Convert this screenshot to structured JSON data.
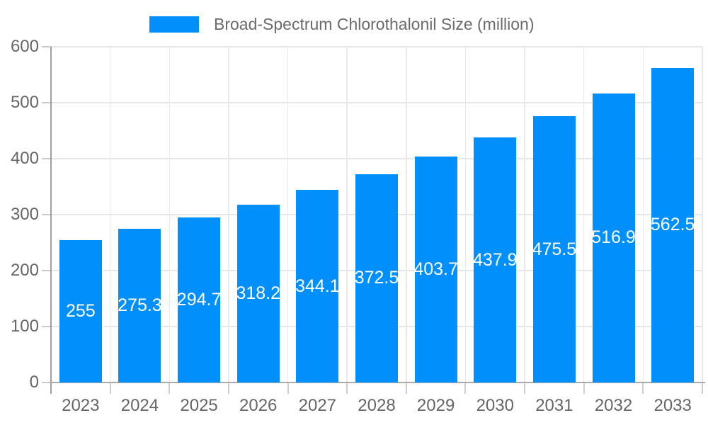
{
  "legend": {
    "items": [
      {
        "label": "Broad-Spectrum Chlorothalonil Size (million)",
        "color": "#008FFB"
      }
    ]
  },
  "chart_data": {
    "type": "bar",
    "title": "Broad-Spectrum Chlorothalonil Size (million)",
    "categories": [
      "2023",
      "2024",
      "2025",
      "2026",
      "2027",
      "2028",
      "2029",
      "2030",
      "2031",
      "2032",
      "2033"
    ],
    "values": [
      255,
      275.3,
      294.7,
      318.2,
      344.1,
      372.5,
      403.7,
      437.9,
      475.5,
      516.9,
      562.5
    ],
    "value_labels": [
      "255",
      "275.3",
      "294.7",
      "318.2",
      "344.1",
      "372.5",
      "403.7",
      "437.9",
      "475.5",
      "516.9",
      "562.5"
    ],
    "xlabel": "",
    "ylabel": "",
    "ylim": [
      0,
      600
    ],
    "yticks": [
      0,
      100,
      200,
      300,
      400,
      500,
      600
    ],
    "grid": true,
    "legend_position": "top",
    "colors": {
      "bar": "#008FFB",
      "bar_label_text": "#ffffff",
      "axis_text": "#666666",
      "grid_line": "#e7e7e7",
      "axis_line": "#9e9e9e"
    }
  }
}
